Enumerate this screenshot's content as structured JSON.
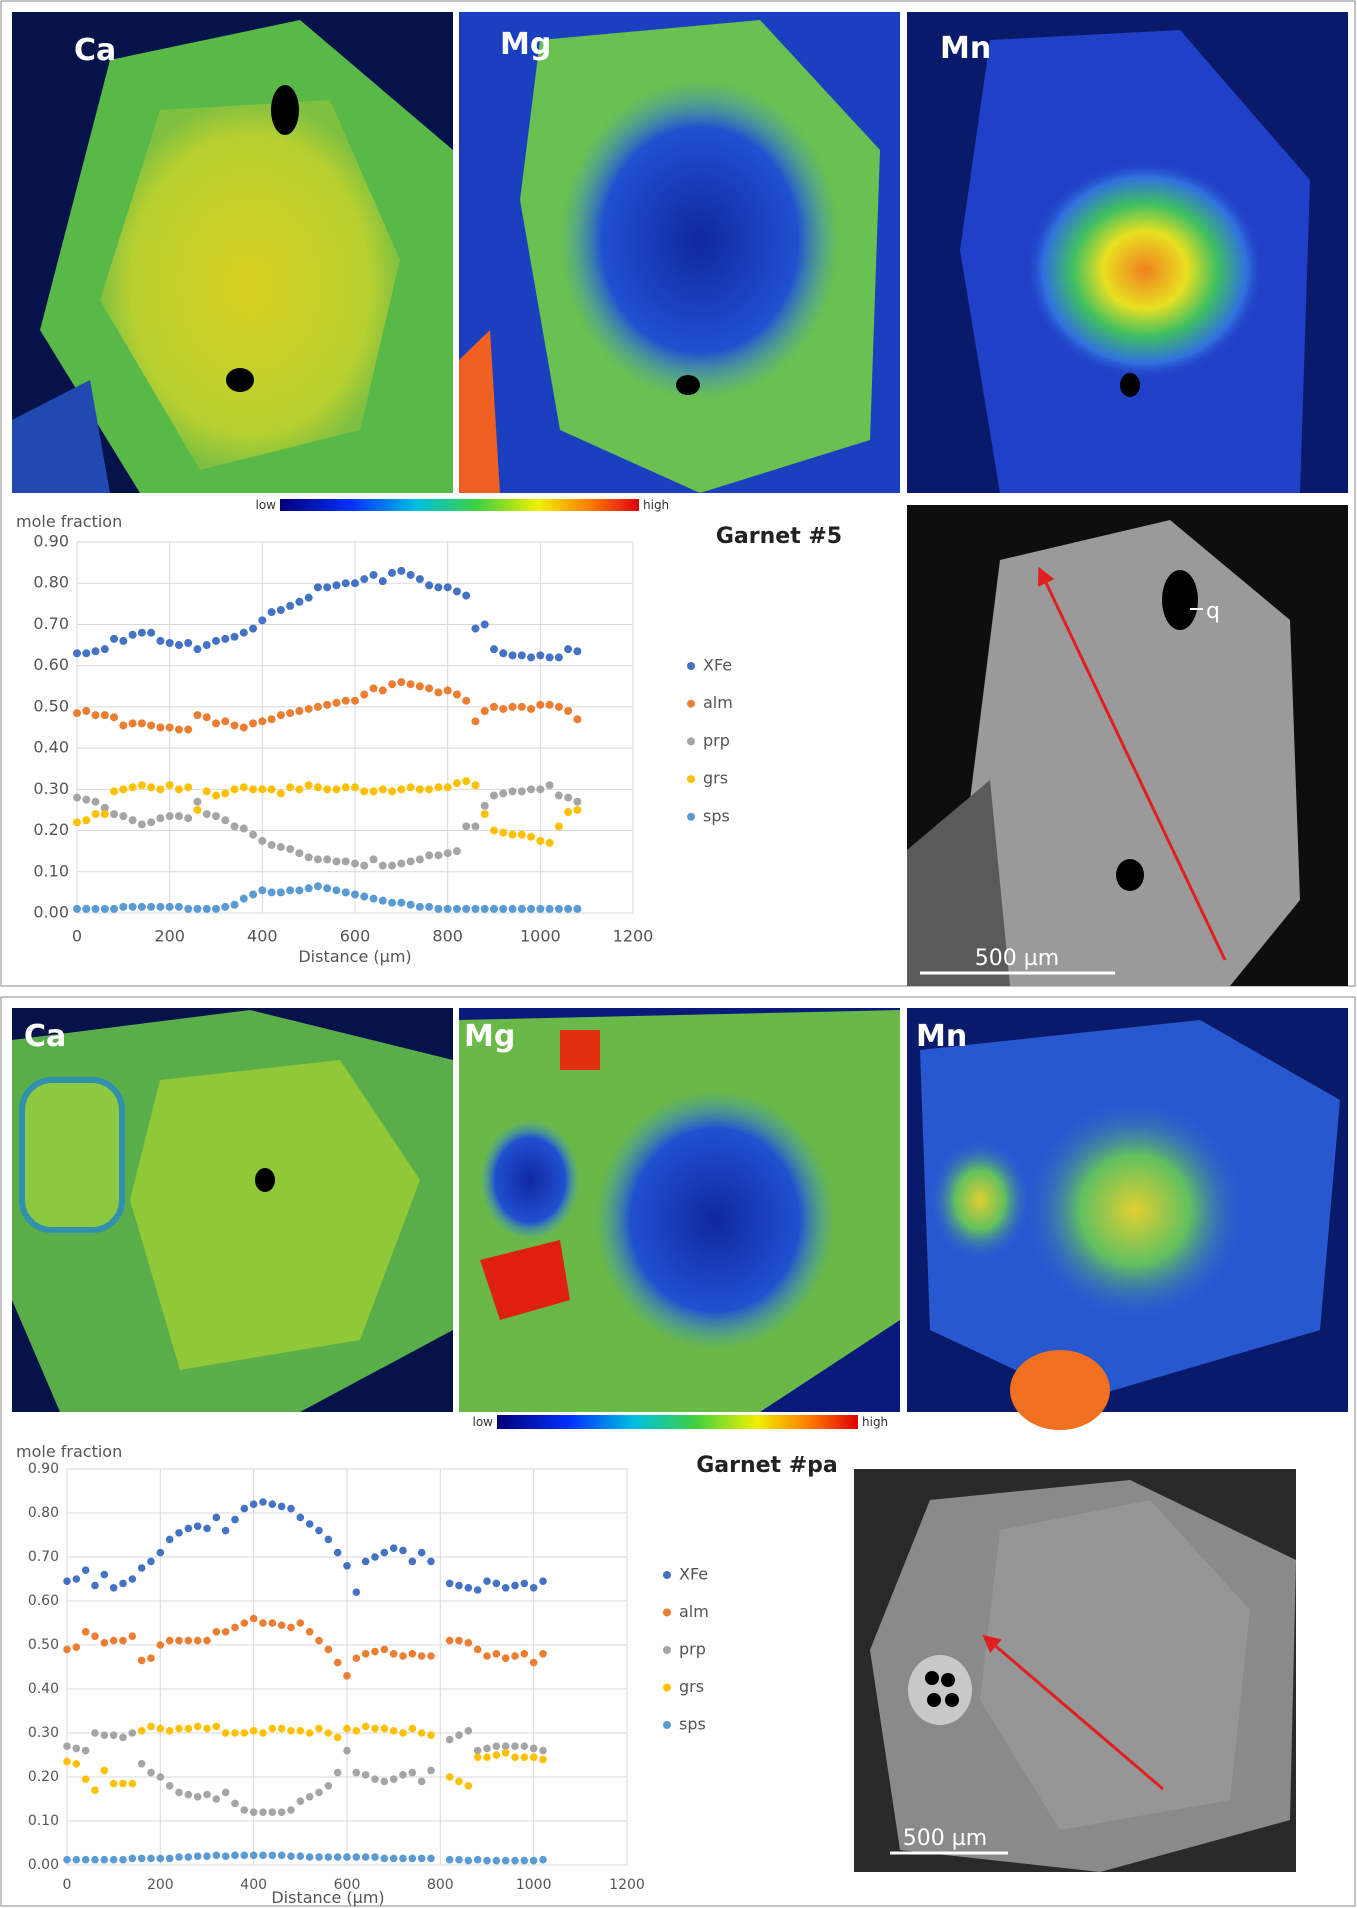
{
  "chart_data": [
    {
      "type": "scatter",
      "title": "Garnet #5",
      "ylabel": "mole fraction",
      "xlabel": "Distance (µm)",
      "x": [
        0,
        20,
        40,
        60,
        80,
        100,
        120,
        140,
        160,
        180,
        200,
        220,
        240,
        260,
        280,
        300,
        320,
        340,
        360,
        380,
        400,
        420,
        440,
        460,
        480,
        500,
        520,
        540,
        560,
        580,
        600,
        620,
        640,
        660,
        680,
        700,
        720,
        740,
        760,
        780,
        800,
        820,
        840,
        860,
        880,
        900,
        920,
        940,
        960,
        980,
        1000,
        1020,
        1040,
        1060,
        1080
      ],
      "series": [
        {
          "name": "XFe",
          "color": "#4472c4",
          "values": [
            0.63,
            0.63,
            0.635,
            0.64,
            0.665,
            0.66,
            0.675,
            0.68,
            0.68,
            0.66,
            0.655,
            0.65,
            0.655,
            0.64,
            0.65,
            0.66,
            0.665,
            0.67,
            0.68,
            0.69,
            0.71,
            0.73,
            0.735,
            0.745,
            0.755,
            0.765,
            0.79,
            0.79,
            0.795,
            0.8,
            0.8,
            0.81,
            0.82,
            0.805,
            0.825,
            0.83,
            0.82,
            0.81,
            0.795,
            0.79,
            0.79,
            0.78,
            0.77,
            0.69,
            0.7,
            0.64,
            0.63,
            0.625,
            0.625,
            0.62,
            0.625,
            0.62,
            0.62,
            0.64,
            0.635
          ]
        },
        {
          "name": "alm",
          "color": "#ed7d31",
          "values": [
            0.485,
            0.49,
            0.48,
            0.48,
            0.475,
            0.455,
            0.46,
            0.46,
            0.455,
            0.45,
            0.45,
            0.445,
            0.445,
            0.48,
            0.475,
            0.46,
            0.465,
            0.455,
            0.45,
            0.46,
            0.465,
            0.47,
            0.48,
            0.485,
            0.49,
            0.495,
            0.5,
            0.505,
            0.51,
            0.515,
            0.515,
            0.53,
            0.545,
            0.54,
            0.555,
            0.56,
            0.555,
            0.55,
            0.545,
            0.535,
            0.54,
            0.53,
            0.515,
            0.465,
            0.49,
            0.5,
            0.495,
            0.5,
            0.5,
            0.495,
            0.505,
            0.505,
            0.5,
            0.49,
            0.47
          ]
        },
        {
          "name": "prp",
          "color": "#a5a5a5",
          "values": [
            0.28,
            0.275,
            0.27,
            0.255,
            0.24,
            0.235,
            0.225,
            0.215,
            0.22,
            0.23,
            0.235,
            0.235,
            0.23,
            0.27,
            0.24,
            0.235,
            0.225,
            0.21,
            0.205,
            0.19,
            0.175,
            0.165,
            0.16,
            0.155,
            0.145,
            0.135,
            0.13,
            0.13,
            0.125,
            0.125,
            0.12,
            0.115,
            0.13,
            0.115,
            0.115,
            0.12,
            0.125,
            0.13,
            0.14,
            0.14,
            0.145,
            0.15,
            0.21,
            0.21,
            0.26,
            0.285,
            0.29,
            0.295,
            0.295,
            0.3,
            0.3,
            0.31,
            0.285,
            0.28,
            0.27
          ]
        },
        {
          "name": "grs",
          "color": "#ffc000",
          "values": [
            0.22,
            0.225,
            0.24,
            0.24,
            0.295,
            0.3,
            0.305,
            0.31,
            0.305,
            0.3,
            0.31,
            0.3,
            0.305,
            0.25,
            0.295,
            0.285,
            0.29,
            0.3,
            0.305,
            0.3,
            0.3,
            0.3,
            0.29,
            0.305,
            0.3,
            0.31,
            0.305,
            0.3,
            0.3,
            0.305,
            0.305,
            0.295,
            0.295,
            0.3,
            0.295,
            0.3,
            0.305,
            0.3,
            0.3,
            0.305,
            0.305,
            0.315,
            0.32,
            0.31,
            0.24,
            0.2,
            0.195,
            0.19,
            0.19,
            0.185,
            0.175,
            0.17,
            0.21,
            0.245,
            0.25
          ]
        },
        {
          "name": "sps",
          "color": "#5b9bd5",
          "values": [
            0.01,
            0.01,
            0.01,
            0.01,
            0.01,
            0.015,
            0.015,
            0.015,
            0.015,
            0.015,
            0.015,
            0.015,
            0.01,
            0.01,
            0.01,
            0.01,
            0.015,
            0.02,
            0.035,
            0.045,
            0.055,
            0.05,
            0.05,
            0.055,
            0.055,
            0.06,
            0.065,
            0.06,
            0.055,
            0.05,
            0.045,
            0.04,
            0.035,
            0.03,
            0.025,
            0.025,
            0.02,
            0.015,
            0.015,
            0.01,
            0.01,
            0.01,
            0.01,
            0.01,
            0.01,
            0.01,
            0.01,
            0.01,
            0.01,
            0.01,
            0.01,
            0.01,
            0.01,
            0.01,
            0.01
          ]
        }
      ],
      "xlim": [
        0,
        1200
      ],
      "xticks": [
        0,
        200,
        400,
        600,
        800,
        1000,
        1200
      ],
      "ylim": [
        0,
        0.9
      ],
      "yticks": [
        {
          "value": 0,
          "label": "0.00"
        },
        {
          "value": 0.1,
          "label": "0.10"
        },
        {
          "value": 0.2,
          "label": "0.20"
        },
        {
          "value": 0.3,
          "label": "0.30"
        },
        {
          "value": 0.4,
          "label": "0.40"
        },
        {
          "value": 0.5,
          "label": "0.50"
        },
        {
          "value": 0.6,
          "label": "0.60"
        },
        {
          "value": 0.7,
          "label": "0.70"
        },
        {
          "value": 0.8,
          "label": "0.80"
        },
        {
          "value": 0.9,
          "label": "0.90"
        }
      ],
      "grid": true,
      "legend": "right"
    },
    {
      "type": "scatter",
      "title": "Garnet #pa",
      "ylabel": "mole fraction",
      "xlabel": "Distance (µm)",
      "x": [
        0,
        20,
        40,
        60,
        80,
        100,
        120,
        140,
        160,
        180,
        200,
        220,
        240,
        260,
        280,
        300,
        320,
        340,
        360,
        380,
        400,
        420,
        440,
        460,
        480,
        500,
        520,
        540,
        560,
        580,
        600,
        620,
        640,
        660,
        680,
        700,
        720,
        740,
        760,
        780,
        820,
        840,
        860,
        880,
        900,
        920,
        940,
        960,
        980,
        1000,
        1020
      ],
      "series": [
        {
          "name": "XFe",
          "color": "#4472c4",
          "values": [
            0.645,
            0.65,
            0.67,
            0.635,
            0.66,
            0.63,
            0.64,
            0.65,
            0.675,
            0.69,
            0.71,
            0.74,
            0.755,
            0.765,
            0.77,
            0.765,
            0.79,
            0.76,
            0.785,
            0.81,
            0.82,
            0.825,
            0.82,
            0.815,
            0.81,
            0.79,
            0.775,
            0.76,
            0.74,
            0.71,
            0.68,
            0.62,
            0.69,
            0.7,
            0.71,
            0.72,
            0.715,
            0.69,
            0.71,
            0.69,
            0.64,
            0.635,
            0.63,
            0.625,
            0.645,
            0.64,
            0.63,
            0.635,
            0.64,
            0.63,
            0.645
          ]
        },
        {
          "name": "alm",
          "color": "#ed7d31",
          "values": [
            0.49,
            0.495,
            0.53,
            0.52,
            0.505,
            0.51,
            0.51,
            0.52,
            0.465,
            0.47,
            0.5,
            0.51,
            0.51,
            0.51,
            0.51,
            0.51,
            0.53,
            0.53,
            0.54,
            0.55,
            0.56,
            0.55,
            0.55,
            0.545,
            0.54,
            0.55,
            0.53,
            0.51,
            0.49,
            0.46,
            0.43,
            0.47,
            0.48,
            0.485,
            0.49,
            0.48,
            0.475,
            0.48,
            0.475,
            0.475,
            0.51,
            0.51,
            0.505,
            0.49,
            0.475,
            0.48,
            0.47,
            0.475,
            0.48,
            0.46,
            0.48
          ]
        },
        {
          "name": "prp",
          "color": "#a5a5a5",
          "values": [
            0.27,
            0.265,
            0.26,
            0.3,
            0.295,
            0.295,
            0.29,
            0.3,
            0.23,
            0.21,
            0.2,
            0.18,
            0.165,
            0.16,
            0.155,
            0.16,
            0.15,
            0.165,
            0.14,
            0.125,
            0.12,
            0.12,
            0.12,
            0.12,
            0.125,
            0.145,
            0.155,
            0.165,
            0.18,
            0.21,
            0.26,
            0.21,
            0.205,
            0.195,
            0.19,
            0.195,
            0.205,
            0.21,
            0.19,
            0.215,
            0.285,
            0.295,
            0.305,
            0.26,
            0.265,
            0.27,
            0.27,
            0.27,
            0.27,
            0.265,
            0.26
          ]
        },
        {
          "name": "grs",
          "color": "#ffc000",
          "values": [
            0.235,
            0.23,
            0.195,
            0.17,
            0.215,
            0.185,
            0.185,
            0.185,
            0.305,
            0.315,
            0.31,
            0.305,
            0.31,
            0.31,
            0.315,
            0.31,
            0.315,
            0.3,
            0.3,
            0.3,
            0.305,
            0.3,
            0.31,
            0.31,
            0.305,
            0.305,
            0.3,
            0.31,
            0.3,
            0.29,
            0.31,
            0.305,
            0.315,
            0.31,
            0.31,
            0.305,
            0.3,
            0.31,
            0.3,
            0.295,
            0.2,
            0.19,
            0.18,
            0.245,
            0.245,
            0.25,
            0.255,
            0.245,
            0.245,
            0.245,
            0.24
          ]
        },
        {
          "name": "sps",
          "color": "#5b9bd5",
          "values": [
            0.012,
            0.012,
            0.012,
            0.012,
            0.012,
            0.012,
            0.012,
            0.015,
            0.015,
            0.015,
            0.015,
            0.015,
            0.018,
            0.018,
            0.02,
            0.02,
            0.022,
            0.02,
            0.022,
            0.022,
            0.022,
            0.022,
            0.022,
            0.022,
            0.02,
            0.02,
            0.018,
            0.018,
            0.018,
            0.018,
            0.018,
            0.018,
            0.018,
            0.018,
            0.015,
            0.015,
            0.015,
            0.015,
            0.015,
            0.015,
            0.012,
            0.012,
            0.01,
            0.012,
            0.01,
            0.01,
            0.01,
            0.01,
            0.01,
            0.01,
            0.012
          ]
        }
      ],
      "xlim": [
        0,
        1200
      ],
      "xticks": [
        0,
        200,
        400,
        600,
        800,
        1000,
        1200
      ],
      "ylim": [
        0,
        0.9
      ],
      "yticks": [
        {
          "value": 0,
          "label": "0.00"
        },
        {
          "value": 0.1,
          "label": "0.10"
        },
        {
          "value": 0.2,
          "label": "0.20"
        },
        {
          "value": 0.3,
          "label": "0.30"
        },
        {
          "value": 0.4,
          "label": "0.40"
        },
        {
          "value": 0.5,
          "label": "0.50"
        },
        {
          "value": 0.6,
          "label": "0.60"
        },
        {
          "value": 0.7,
          "label": "0.70"
        },
        {
          "value": 0.8,
          "label": "0.80"
        },
        {
          "value": 0.9,
          "label": "0.90"
        }
      ],
      "grid": true,
      "legend": "right"
    }
  ],
  "panels": [
    {
      "maps": [
        "Ca",
        "Mg",
        "Mn"
      ],
      "colorbar": {
        "low": "low",
        "high": "high"
      },
      "bse": {
        "labels": [
          "q"
        ],
        "scale_bar": "500 µm"
      }
    },
    {
      "maps": [
        "Ca",
        "Mg",
        "Mn"
      ],
      "colorbar": {
        "low": "low",
        "high": "high"
      },
      "bse": {
        "scale_bar": "500 µm"
      }
    }
  ]
}
